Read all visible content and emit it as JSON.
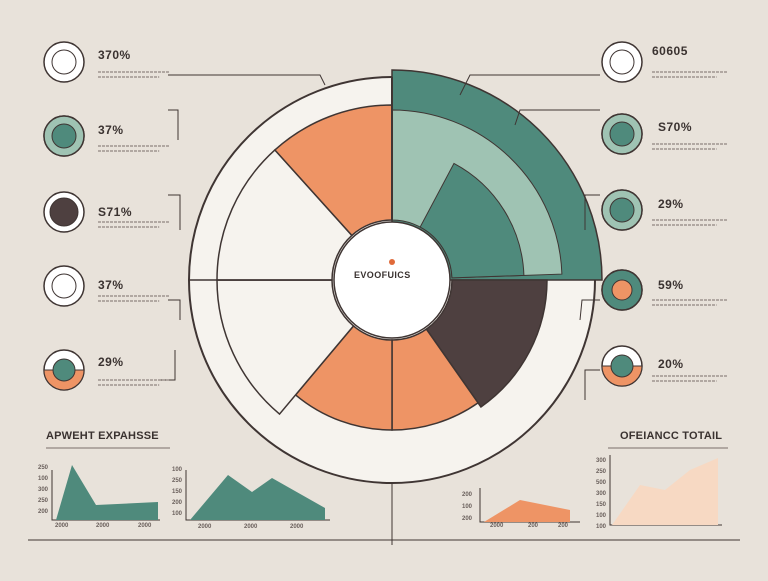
{
  "colors": {
    "background": "#e8e2da",
    "teal": "#4f8a7c",
    "light_teal": "#9fc3b3",
    "orange": "#ee9465",
    "dark_brown": "#4e4040",
    "cream": "#f6f3ee",
    "outline": "#3f3533"
  },
  "center_label": "EVOOFUICS",
  "left_callouts": [
    {
      "value": "370%",
      "icon": "ring-donut"
    },
    {
      "value": "37%",
      "icon": "teal-donut"
    },
    {
      "value": "S71%",
      "icon": "dark-donut"
    },
    {
      "value": "37%",
      "icon": "ring-donut"
    },
    {
      "value": "29%",
      "icon": "orange-donut"
    }
  ],
  "right_callouts": [
    {
      "value": "60605",
      "icon": "ring-donut"
    },
    {
      "value": "S70%",
      "icon": "teal-donut"
    },
    {
      "value": "29%",
      "icon": "teal-donut"
    },
    {
      "value": "59%",
      "icon": "mixed-donut"
    },
    {
      "value": "20%",
      "icon": "orange-donut"
    }
  ],
  "left_section_title": "APWEHT EXPAHSSE",
  "right_section_title": "OFEIANCC TOTAIL",
  "charts": {
    "left_small_ticks": [
      "250",
      "100",
      "300",
      "250",
      "200"
    ],
    "left_small_xlabels": [
      "2000",
      "2000",
      "2000"
    ],
    "left_mid_ticks": [
      "100",
      "250",
      "150",
      "200",
      "100"
    ],
    "left_mid_xlabels": [
      "2000",
      "2000",
      "2000"
    ],
    "right_mid_ticks": [
      "200",
      "100",
      "200"
    ],
    "right_mid_xlabels": [
      "2000",
      "200",
      "200"
    ],
    "right_small_ticks": [
      "300",
      "250",
      "500",
      "300",
      "150",
      "100",
      "100"
    ]
  }
}
